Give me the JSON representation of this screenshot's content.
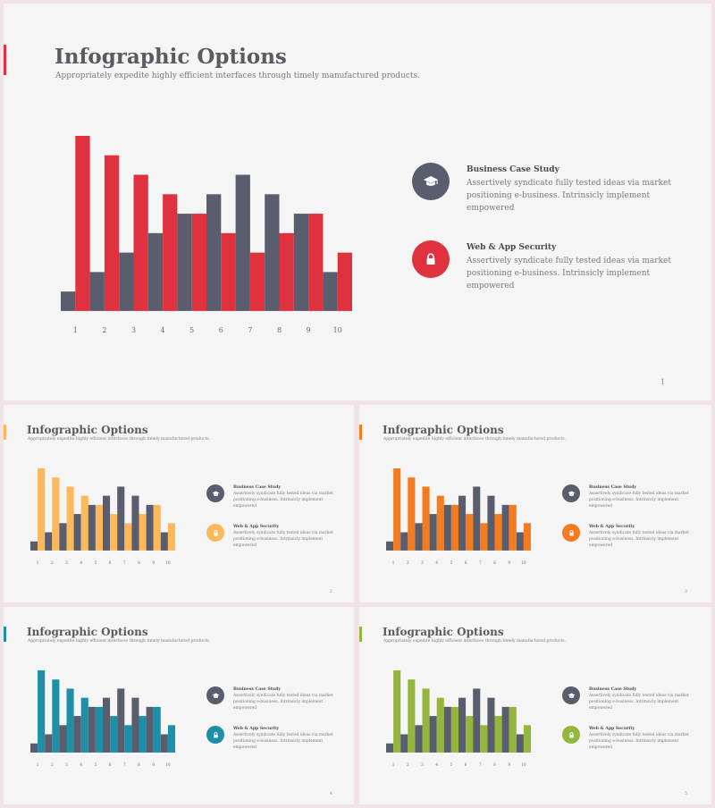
{
  "slides": [
    {
      "title": "Infographic Options",
      "subtitle": "Appropriately expedite highly efficient interfaces through timely manufactured products.",
      "accent": "#e0313f",
      "page": "1",
      "features": [
        {
          "title": "Business Case Study",
          "desc": "Assertively syndicate fully  tested ideas via market positioning e-business. Intrinsicly implement empowered",
          "icon": "graduation-cap-icon",
          "color": "#5a5d6d"
        },
        {
          "title": "Web & App Security",
          "desc": "Assertively syndicate fully  tested ideas via market positioning e-business. Intrinsicly implement empowered",
          "icon": "lock-icon",
          "color": "#e0313f"
        }
      ]
    },
    {
      "title": "Infographic Options",
      "subtitle": "Appropriately expedite highly efficient interfaces through timely manufactured products.",
      "accent": "#fbb95b",
      "page": "2",
      "features": [
        {
          "title": "Business Case Study",
          "desc": "Assertively syndicate fully  tested ideas via market positioning e-business. Intrinsicly implement empowered",
          "icon": "graduation-cap-icon",
          "color": "#5a5d6d"
        },
        {
          "title": "Web & App Security",
          "desc": "Assertively syndicate fully  tested ideas via market positioning e-business. Intrinsicly implement empowered",
          "icon": "lock-icon",
          "color": "#fbb95b"
        }
      ]
    },
    {
      "title": "Infographic Options",
      "subtitle": "Appropriately expedite highly efficient interfaces through timely manufactured products.",
      "accent": "#f47b20",
      "page": "3",
      "features": [
        {
          "title": "Business Case Study",
          "desc": "Assertively syndicate fully  tested ideas via market positioning e-business. Intrinsicly implement empowered",
          "icon": "graduation-cap-icon",
          "color": "#5a5d6d"
        },
        {
          "title": "Web & App Security",
          "desc": "Assertively syndicate fully  tested ideas via market positioning e-business. Intrinsicly implement empowered",
          "icon": "lock-icon",
          "color": "#f47b20"
        }
      ]
    },
    {
      "title": "Infographic Options",
      "subtitle": "Appropriately expedite highly efficient interfaces through timely manufactured products.",
      "accent": "#1e8fa8",
      "page": "4",
      "features": [
        {
          "title": "Business Case Study",
          "desc": "Assertively syndicate fully  tested ideas via market positioning e-business. Intrinsicly implement empowered",
          "icon": "graduation-cap-icon",
          "color": "#5a5d6d"
        },
        {
          "title": "Web & App Security",
          "desc": "Assertively syndicate fully  tested ideas via market positioning e-business. Intrinsicly implement empowered",
          "icon": "lock-icon",
          "color": "#1e8fa8"
        }
      ]
    },
    {
      "title": "Infographic Options",
      "subtitle": "Appropriately expedite highly efficient interfaces through timely manufactured products.",
      "accent": "#94b63d",
      "page": "5",
      "features": [
        {
          "title": "Business Case Study",
          "desc": "Assertively syndicate fully  tested ideas via market positioning e-business. Intrinsicly implement empowered",
          "icon": "graduation-cap-icon",
          "color": "#5a5d6d"
        },
        {
          "title": "Web & App Security",
          "desc": "Assertively syndicate fully  tested ideas via market positioning e-business. Intrinsicly implement empowered",
          "icon": "lock-icon",
          "color": "#94b63d"
        }
      ]
    }
  ],
  "chart_data": {
    "type": "bar",
    "categories": [
      "1",
      "2",
      "3",
      "4",
      "5",
      "6",
      "7",
      "8",
      "9",
      "10"
    ],
    "series": [
      {
        "values": [
          1,
          2,
          3,
          4,
          5,
          6,
          7,
          6,
          5,
          2
        ],
        "color": "#5a5d6d"
      },
      {
        "values": [
          9,
          8,
          7,
          6,
          5,
          4,
          3,
          4,
          5,
          3
        ],
        "color": "accent"
      }
    ],
    "ylim": [
      0,
      9
    ],
    "grid": false,
    "legend": "none"
  }
}
